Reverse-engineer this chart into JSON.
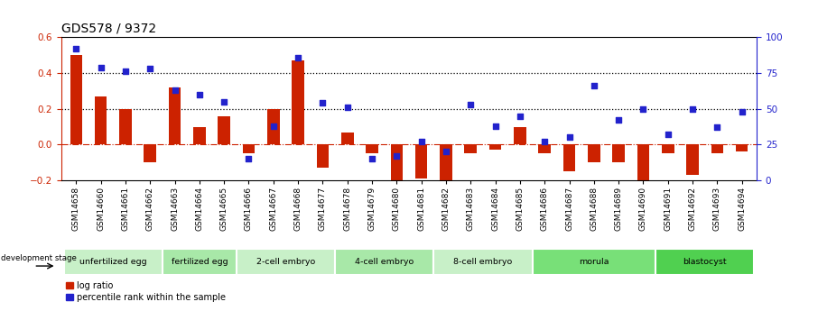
{
  "title": "GDS578 / 9372",
  "samples": [
    "GSM14658",
    "GSM14660",
    "GSM14661",
    "GSM14662",
    "GSM14663",
    "GSM14664",
    "GSM14665",
    "GSM14666",
    "GSM14667",
    "GSM14668",
    "GSM14677",
    "GSM14678",
    "GSM14679",
    "GSM14680",
    "GSM14681",
    "GSM14682",
    "GSM14683",
    "GSM14684",
    "GSM14685",
    "GSM14686",
    "GSM14687",
    "GSM14688",
    "GSM14689",
    "GSM14690",
    "GSM14691",
    "GSM14692",
    "GSM14693",
    "GSM14694"
  ],
  "log_ratio": [
    0.5,
    0.27,
    0.2,
    -0.1,
    0.32,
    0.1,
    0.16,
    -0.05,
    0.2,
    0.47,
    -0.13,
    0.07,
    -0.05,
    -0.2,
    -0.19,
    -0.22,
    -0.05,
    -0.03,
    0.1,
    -0.05,
    -0.15,
    -0.1,
    -0.1,
    -0.22,
    -0.05,
    -0.17,
    -0.05,
    -0.04
  ],
  "percentile": [
    92,
    79,
    76,
    78,
    63,
    60,
    55,
    15,
    38,
    86,
    54,
    51,
    15,
    17,
    27,
    20,
    53,
    38,
    45,
    27,
    30,
    66,
    42,
    50,
    32,
    50,
    37,
    48
  ],
  "stages": [
    {
      "label": "unfertilized egg",
      "start": 0,
      "end": 3,
      "color": "#c8f0c8"
    },
    {
      "label": "fertilized egg",
      "start": 4,
      "end": 6,
      "color": "#a8e8a8"
    },
    {
      "label": "2-cell embryo",
      "start": 7,
      "end": 10,
      "color": "#c8f0c8"
    },
    {
      "label": "4-cell embryo",
      "start": 11,
      "end": 14,
      "color": "#a8e8a8"
    },
    {
      "label": "8-cell embryo",
      "start": 15,
      "end": 18,
      "color": "#c8f0c8"
    },
    {
      "label": "morula",
      "start": 19,
      "end": 23,
      "color": "#78e078"
    },
    {
      "label": "blastocyst",
      "start": 24,
      "end": 27,
      "color": "#50d050"
    }
  ],
  "bar_color": "#cc2200",
  "dot_color": "#2222cc",
  "bg_color": "#ffffff",
  "ylim_left": [
    -0.2,
    0.6
  ],
  "ylim_right": [
    0,
    100
  ],
  "yticks_left": [
    -0.2,
    0.0,
    0.2,
    0.4,
    0.6
  ],
  "yticks_right": [
    0,
    25,
    50,
    75,
    100
  ],
  "hlines": [
    0.2,
    0.4
  ],
  "legend_label_bar": "log ratio",
  "legend_label_dot": "percentile rank within the sample"
}
